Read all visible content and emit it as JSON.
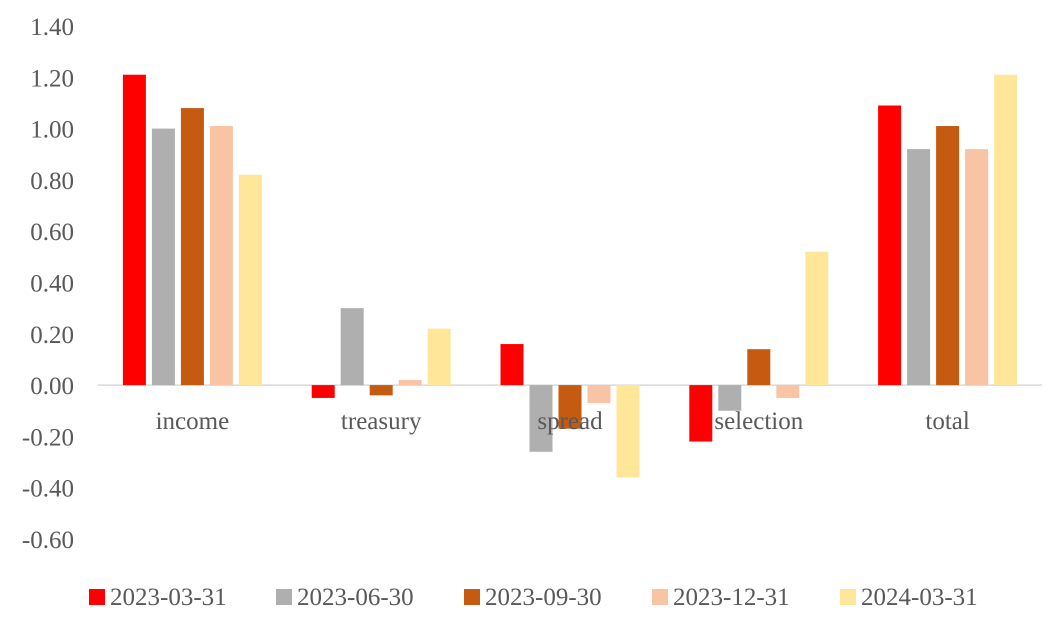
{
  "chart_data": {
    "type": "bar",
    "categories": [
      "income",
      "treasury",
      "spread",
      "selection",
      "total"
    ],
    "series": [
      {
        "name": "2023-03-31",
        "color": "#ff0000",
        "values": [
          1.21,
          -0.05,
          0.16,
          -0.22,
          1.09
        ]
      },
      {
        "name": "2023-06-30",
        "color": "#afafaf",
        "values": [
          1.0,
          0.3,
          -0.26,
          -0.1,
          0.92
        ]
      },
      {
        "name": "2023-09-30",
        "color": "#c55a11",
        "values": [
          1.08,
          -0.04,
          -0.17,
          0.14,
          1.01
        ]
      },
      {
        "name": "2023-12-31",
        "color": "#f8c4a4",
        "values": [
          1.01,
          0.02,
          -0.07,
          -0.05,
          0.92
        ]
      },
      {
        "name": "2024-03-31",
        "color": "#ffe699",
        "values": [
          0.82,
          0.22,
          -0.36,
          0.52,
          1.21
        ]
      }
    ],
    "yticks": [
      "1.40",
      "1.20",
      "1.00",
      "0.80",
      "0.60",
      "0.40",
      "0.20",
      "0.00",
      "-0.20",
      "-0.40",
      "-0.60"
    ],
    "ylim": [
      -0.6,
      1.4
    ],
    "grid": false,
    "legend": "bottom"
  }
}
